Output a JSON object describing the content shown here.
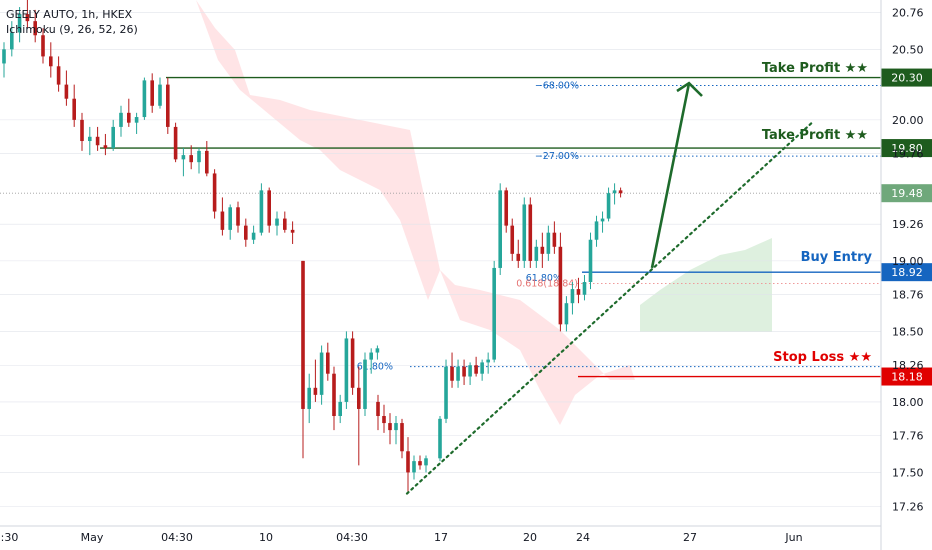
{
  "chart_data": {
    "type": "candlestick",
    "title": "GEELY AUTO, 1h, HKEX",
    "subtitle": "Ichimoku (9, 26, 52, 26)",
    "ylim": [
      17.12,
      20.85
    ],
    "y_ticks": [
      {
        "value": 20.76,
        "label": "20.76"
      },
      {
        "value": 20.5,
        "label": "20.50"
      },
      {
        "value": 20.0,
        "label": "20.00"
      },
      {
        "value": 19.76,
        "label": "19.76"
      },
      {
        "value": 19.26,
        "label": "19.26"
      },
      {
        "value": 19.0,
        "label": "19.00"
      },
      {
        "value": 18.76,
        "label": "18.76"
      },
      {
        "value": 18.5,
        "label": "18.50"
      },
      {
        "value": 18.26,
        "label": "18.26"
      },
      {
        "value": 18.0,
        "label": "18.00"
      },
      {
        "value": 17.76,
        "label": "17.76"
      },
      {
        "value": 17.5,
        "label": "17.50"
      },
      {
        "value": 17.26,
        "label": "17.26"
      }
    ],
    "x_ticks": [
      "0:30",
      "May",
      "04:30",
      "10",
      "04:30",
      "17",
      "20",
      "24",
      "27",
      "Jun"
    ],
    "levels": [
      {
        "name": "Take Profit ★★",
        "price": 20.3,
        "price_label": "20.30",
        "color": "#1e5c1e",
        "fib": "68.00%"
      },
      {
        "name": "Take Profit ★★",
        "price": 19.8,
        "price_label": "19.80",
        "color": "#1e5c1e",
        "fib": "27.00%"
      },
      {
        "name": "Buy Entry",
        "price": 18.92,
        "price_label": "18.92",
        "color": "#1565c0",
        "fib": "61.80%"
      },
      {
        "name": "Stop Loss ★★",
        "price": 18.18,
        "price_label": "18.18",
        "color": "#e00000",
        "fib": "61.80%"
      }
    ],
    "current_price": {
      "value": 19.48,
      "label": "19.48",
      "color": "#6fa87b"
    },
    "extra_fib_label": "0.618(18.84)",
    "candles": [
      [
        20.4,
        20.55,
        20.3,
        20.5
      ],
      [
        20.5,
        20.7,
        20.45,
        20.62
      ],
      [
        20.62,
        20.8,
        20.55,
        20.75
      ],
      [
        20.75,
        20.85,
        20.65,
        20.7
      ],
      [
        20.7,
        20.78,
        20.55,
        20.6
      ],
      [
        20.6,
        20.65,
        20.4,
        20.45
      ],
      [
        20.45,
        20.55,
        20.3,
        20.38
      ],
      [
        20.38,
        20.45,
        20.2,
        20.25
      ],
      [
        20.25,
        20.35,
        20.1,
        20.15
      ],
      [
        20.15,
        20.25,
        19.95,
        20.0
      ],
      [
        20.0,
        20.05,
        19.78,
        19.85
      ],
      [
        19.85,
        19.95,
        19.75,
        19.88
      ],
      [
        19.88,
        19.95,
        19.78,
        19.82
      ],
      [
        19.82,
        19.9,
        19.75,
        19.8
      ],
      [
        19.8,
        20.0,
        19.78,
        19.95
      ],
      [
        19.95,
        20.1,
        19.88,
        20.05
      ],
      [
        20.05,
        20.15,
        19.95,
        19.98
      ],
      [
        19.98,
        20.05,
        19.9,
        20.02
      ],
      [
        20.02,
        20.3,
        20.0,
        20.28
      ],
      [
        20.28,
        20.33,
        20.05,
        20.1
      ],
      [
        20.1,
        20.3,
        20.08,
        20.25
      ],
      [
        20.25,
        20.3,
        19.9,
        19.95
      ],
      [
        19.95,
        19.98,
        19.7,
        19.72
      ],
      [
        19.72,
        19.8,
        19.6,
        19.75
      ],
      [
        19.75,
        19.82,
        19.65,
        19.7
      ],
      [
        19.7,
        19.8,
        19.62,
        19.78
      ],
      [
        19.78,
        19.85,
        19.6,
        19.62
      ],
      [
        19.62,
        19.65,
        19.3,
        19.35
      ],
      [
        19.35,
        19.45,
        19.18,
        19.22
      ],
      [
        19.22,
        19.4,
        19.15,
        19.38
      ],
      [
        19.38,
        19.42,
        19.2,
        19.25
      ],
      [
        19.25,
        19.3,
        19.1,
        19.15
      ],
      [
        19.15,
        19.25,
        19.12,
        19.2
      ],
      [
        19.2,
        19.55,
        19.18,
        19.5
      ],
      [
        19.5,
        19.52,
        19.2,
        19.25
      ],
      [
        19.25,
        19.35,
        19.18,
        19.3
      ],
      [
        19.3,
        19.35,
        19.2,
        19.22
      ],
      [
        19.22,
        19.28,
        19.12,
        19.2
      ],
      [
        19.0,
        19.0,
        17.6,
        17.95
      ],
      [
        17.95,
        18.2,
        17.85,
        18.1
      ],
      [
        18.1,
        18.3,
        18.0,
        18.05
      ],
      [
        18.05,
        18.4,
        17.98,
        18.35
      ],
      [
        18.35,
        18.42,
        18.15,
        18.2
      ],
      [
        18.2,
        18.25,
        17.8,
        17.9
      ],
      [
        17.9,
        18.05,
        17.85,
        18.0
      ],
      [
        18.0,
        18.5,
        17.95,
        18.45
      ],
      [
        18.45,
        18.5,
        18.05,
        18.1
      ],
      [
        18.1,
        18.25,
        17.55,
        17.95
      ],
      [
        17.95,
        18.35,
        17.9,
        18.3
      ],
      [
        18.3,
        18.38,
        18.2,
        18.35
      ],
      [
        18.35,
        18.4,
        18.3,
        18.38
      ],
      [
        18.0,
        18.05,
        17.8,
        17.9
      ],
      [
        17.9,
        17.98,
        17.78,
        17.85
      ],
      [
        17.85,
        17.92,
        17.7,
        17.8
      ],
      [
        17.8,
        17.9,
        17.7,
        17.85
      ],
      [
        17.85,
        17.88,
        17.6,
        17.65
      ],
      [
        17.65,
        17.75,
        17.35,
        17.5
      ],
      [
        17.5,
        17.62,
        17.45,
        17.58
      ],
      [
        17.58,
        17.62,
        17.52,
        17.55
      ],
      [
        17.55,
        17.62,
        17.5,
        17.6
      ],
      [
        17.6,
        17.9,
        17.58,
        17.88
      ],
      [
        17.88,
        18.3,
        17.85,
        18.25
      ],
      [
        18.25,
        18.35,
        18.1,
        18.15
      ],
      [
        18.15,
        18.3,
        18.1,
        18.25
      ],
      [
        18.25,
        18.3,
        18.12,
        18.18
      ],
      [
        18.18,
        18.28,
        18.12,
        18.26
      ],
      [
        18.26,
        18.32,
        18.18,
        18.2
      ],
      [
        18.2,
        18.3,
        18.15,
        18.28
      ],
      [
        18.28,
        18.35,
        18.2,
        18.3
      ],
      [
        18.3,
        19.0,
        18.28,
        18.95
      ],
      [
        18.95,
        19.55,
        18.9,
        19.5
      ],
      [
        19.5,
        19.52,
        19.2,
        19.25
      ],
      [
        19.25,
        19.3,
        19.0,
        19.05
      ],
      [
        19.05,
        19.15,
        18.95,
        19.0
      ],
      [
        19.0,
        19.45,
        18.95,
        19.4
      ],
      [
        19.4,
        19.45,
        18.95,
        19.0
      ],
      [
        19.0,
        19.15,
        18.95,
        19.1
      ],
      [
        19.1,
        19.2,
        18.95,
        19.05
      ],
      [
        19.05,
        19.25,
        19.0,
        19.2
      ],
      [
        19.2,
        19.28,
        19.05,
        19.1
      ],
      [
        19.1,
        19.2,
        18.5,
        18.55
      ],
      [
        18.55,
        18.75,
        18.5,
        18.7
      ],
      [
        18.7,
        18.85,
        18.62,
        18.8
      ],
      [
        18.8,
        18.88,
        18.7,
        18.76
      ],
      [
        18.76,
        18.9,
        18.72,
        18.85
      ],
      [
        18.85,
        19.2,
        18.8,
        19.15
      ],
      [
        19.15,
        19.32,
        19.1,
        19.28
      ],
      [
        19.28,
        19.35,
        19.2,
        19.3
      ],
      [
        19.3,
        19.52,
        19.28,
        19.48
      ],
      [
        19.48,
        19.55,
        19.4,
        19.5
      ],
      [
        19.5,
        19.52,
        19.45,
        19.48
      ]
    ]
  },
  "colors": {
    "up": "#25a69a",
    "down": "#b71c1c",
    "kumo_bear": "#ffcdd2",
    "kumo_bull": "#c8e6c9",
    "trendline": "#1e6b2c",
    "grid": "#e0e3eb"
  }
}
